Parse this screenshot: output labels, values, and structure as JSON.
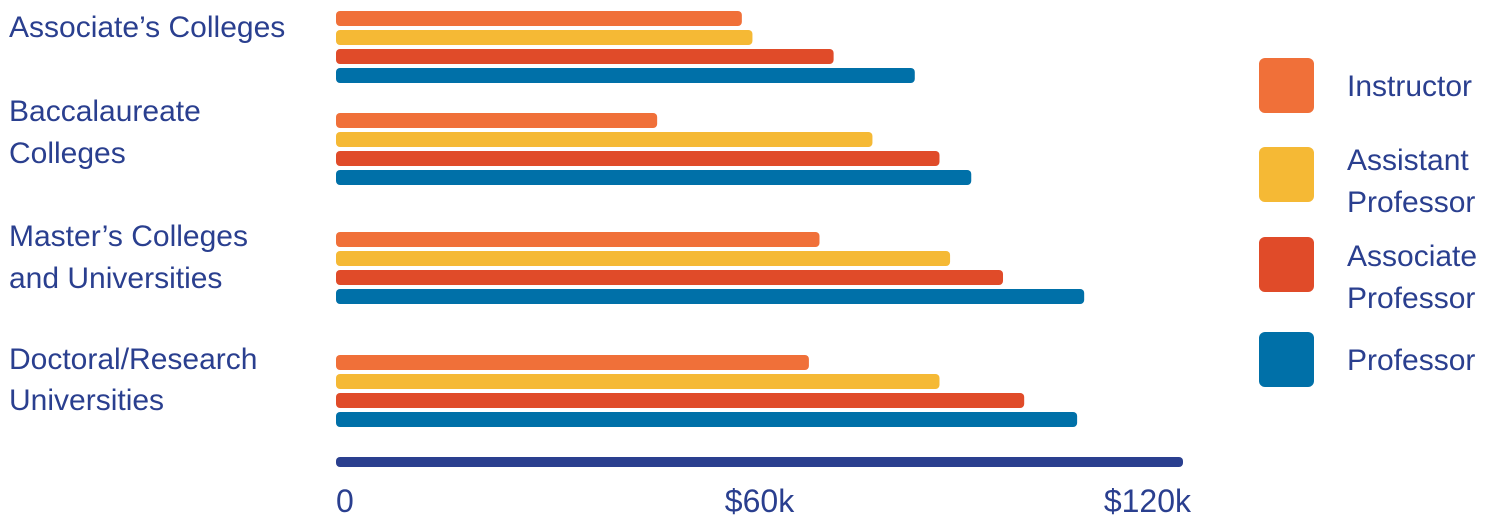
{
  "chart_data": {
    "type": "bar",
    "orientation": "horizontal",
    "categories": [
      [
        "Associate’s Colleges"
      ],
      [
        "Baccalaureate",
        "Colleges"
      ],
      [
        "Master’s Colleges",
        "and Universities"
      ],
      [
        "Doctoral/Research",
        "Universities"
      ]
    ],
    "series": [
      {
        "name": [
          "Instructor"
        ],
        "color": "#f07039",
        "values": [
          57.5,
          45.5,
          68.5,
          67
        ]
      },
      {
        "name": [
          "Assistant",
          "Professor"
        ],
        "color": "#f5b935",
        "values": [
          59,
          76,
          87,
          85.5
        ]
      },
      {
        "name": [
          "Associate",
          "Professor"
        ],
        "color": "#e04b29",
        "values": [
          70.5,
          85.5,
          94.5,
          97.5
        ]
      },
      {
        "name": [
          "Professor"
        ],
        "color": "#0070a8",
        "values": [
          82,
          90,
          106,
          105
        ]
      }
    ],
    "xlim": [
      0,
      120
    ],
    "ticks": [
      {
        "value": 0,
        "label": "0"
      },
      {
        "value": 60,
        "label": "$60k"
      },
      {
        "value": 120,
        "label": "$120k"
      }
    ],
    "axis_color": "#2a3f8f",
    "legend_position": "right",
    "title": "",
    "xlabel": "",
    "ylabel": ""
  }
}
